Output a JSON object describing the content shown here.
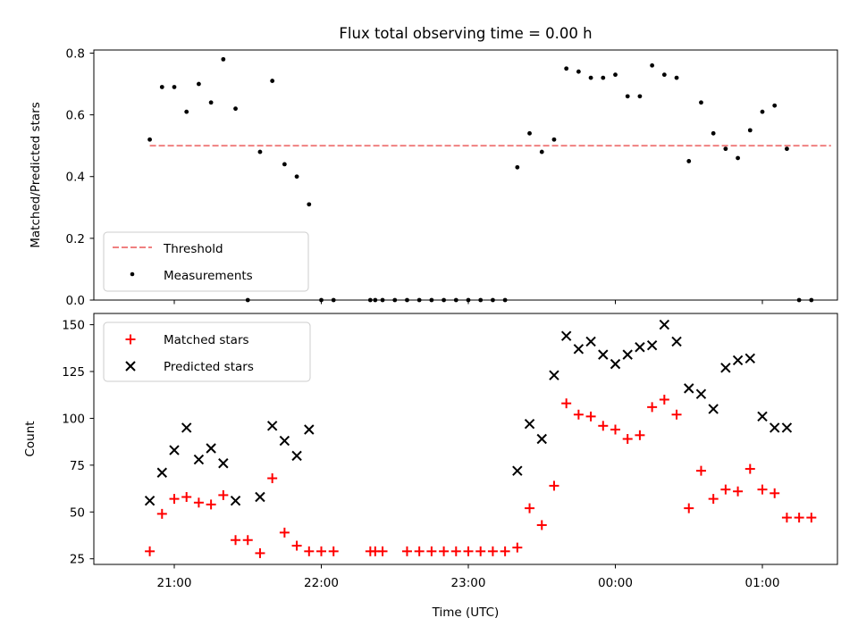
{
  "chart_data": [
    {
      "type": "scatter",
      "title": "Flux total observing time = 0.00 h",
      "xlabel": "",
      "ylabel": "Matched/Predicted stars",
      "ylim": [
        0,
        0.81
      ],
      "yticks": [
        0.0,
        0.2,
        0.4,
        0.6,
        0.8
      ],
      "ytick_labels": [
        "0.0",
        "0.2",
        "0.4",
        "0.6",
        "0.8"
      ],
      "legend": "lower-left",
      "grid": false,
      "threshold": {
        "name": "Threshold",
        "value": 0.5,
        "x_start": "20:50",
        "x_end": "01:28",
        "color": "#f08080"
      },
      "series": [
        {
          "name": "Measurements",
          "color": "#000000",
          "marker": "dot",
          "points": [
            [
              "20:50",
              0.52
            ],
            [
              "20:55",
              0.69
            ],
            [
              "21:00",
              0.69
            ],
            [
              "21:05",
              0.61
            ],
            [
              "21:10",
              0.7
            ],
            [
              "21:15",
              0.64
            ],
            [
              "21:20",
              0.78
            ],
            [
              "21:25",
              0.62
            ],
            [
              "21:30",
              0.0
            ],
            [
              "21:35",
              0.48
            ],
            [
              "21:40",
              0.71
            ],
            [
              "21:45",
              0.44
            ],
            [
              "21:50",
              0.4
            ],
            [
              "21:55",
              0.31
            ],
            [
              "22:00",
              0.0
            ],
            [
              "22:05",
              0.0
            ],
            [
              "22:20",
              0.0
            ],
            [
              "22:22",
              0.0
            ],
            [
              "22:25",
              0.0
            ],
            [
              "22:30",
              0.0
            ],
            [
              "22:35",
              0.0
            ],
            [
              "22:40",
              0.0
            ],
            [
              "22:45",
              0.0
            ],
            [
              "22:50",
              0.0
            ],
            [
              "22:55",
              0.0
            ],
            [
              "23:00",
              0.0
            ],
            [
              "23:05",
              0.0
            ],
            [
              "23:10",
              0.0
            ],
            [
              "23:15",
              0.0
            ],
            [
              "23:20",
              0.43
            ],
            [
              "23:25",
              0.54
            ],
            [
              "23:30",
              0.48
            ],
            [
              "23:35",
              0.52
            ],
            [
              "23:40",
              0.75
            ],
            [
              "23:45",
              0.74
            ],
            [
              "23:50",
              0.72
            ],
            [
              "23:55",
              0.72
            ],
            [
              "00:00",
              0.73
            ],
            [
              "00:05",
              0.66
            ],
            [
              "00:10",
              0.66
            ],
            [
              "00:15",
              0.76
            ],
            [
              "00:20",
              0.73
            ],
            [
              "00:25",
              0.72
            ],
            [
              "00:30",
              0.45
            ],
            [
              "00:35",
              0.64
            ],
            [
              "00:40",
              0.54
            ],
            [
              "00:45",
              0.49
            ],
            [
              "00:50",
              0.46
            ],
            [
              "00:55",
              0.55
            ],
            [
              "01:00",
              0.61
            ],
            [
              "01:05",
              0.63
            ],
            [
              "01:10",
              0.49
            ],
            [
              "01:15",
              0.0
            ],
            [
              "01:20",
              0.0
            ]
          ]
        }
      ]
    },
    {
      "type": "scatter",
      "title": "",
      "xlabel": "Time (UTC)",
      "ylabel": "Count",
      "ylim": [
        22,
        156
      ],
      "yticks": [
        25,
        50,
        75,
        100,
        125,
        150
      ],
      "ytick_labels": [
        "25",
        "50",
        "75",
        "100",
        "125",
        "150"
      ],
      "xticks": [
        "21:00",
        "22:00",
        "23:00",
        "00:00",
        "01:00"
      ],
      "xtick_labels": [
        "21:00",
        "22:00",
        "23:00",
        "00:00",
        "01:00"
      ],
      "legend": "upper-left",
      "grid": false,
      "series": [
        {
          "name": "Matched stars",
          "color": "#ff0000",
          "marker": "plus",
          "points": [
            [
              "20:50",
              29
            ],
            [
              "20:55",
              49
            ],
            [
              "21:00",
              57
            ],
            [
              "21:05",
              58
            ],
            [
              "21:10",
              55
            ],
            [
              "21:15",
              54
            ],
            [
              "21:20",
              59
            ],
            [
              "21:25",
              35
            ],
            [
              "21:30",
              35
            ],
            [
              "21:35",
              28
            ],
            [
              "21:40",
              68
            ],
            [
              "21:45",
              39
            ],
            [
              "21:50",
              32
            ],
            [
              "21:55",
              29
            ],
            [
              "22:00",
              29
            ],
            [
              "22:05",
              29
            ],
            [
              "22:20",
              29
            ],
            [
              "22:22",
              29
            ],
            [
              "22:25",
              29
            ],
            [
              "22:35",
              29
            ],
            [
              "22:40",
              29
            ],
            [
              "22:45",
              29
            ],
            [
              "22:50",
              29
            ],
            [
              "22:55",
              29
            ],
            [
              "23:00",
              29
            ],
            [
              "23:05",
              29
            ],
            [
              "23:10",
              29
            ],
            [
              "23:15",
              29
            ],
            [
              "23:20",
              31
            ],
            [
              "23:25",
              52
            ],
            [
              "23:30",
              43
            ],
            [
              "23:35",
              64
            ],
            [
              "23:40",
              108
            ],
            [
              "23:45",
              102
            ],
            [
              "23:50",
              101
            ],
            [
              "23:55",
              96
            ],
            [
              "00:00",
              94
            ],
            [
              "00:05",
              89
            ],
            [
              "00:10",
              91
            ],
            [
              "00:15",
              106
            ],
            [
              "00:20",
              110
            ],
            [
              "00:25",
              102
            ],
            [
              "00:30",
              52
            ],
            [
              "00:35",
              72
            ],
            [
              "00:40",
              57
            ],
            [
              "00:45",
              62
            ],
            [
              "00:50",
              61
            ],
            [
              "00:55",
              73
            ],
            [
              "01:00",
              62
            ],
            [
              "01:05",
              60
            ],
            [
              "01:10",
              47
            ],
            [
              "01:15",
              47
            ],
            [
              "01:20",
              47
            ]
          ]
        },
        {
          "name": "Predicted stars",
          "color": "#000000",
          "marker": "x",
          "points": [
            [
              "20:50",
              56
            ],
            [
              "20:55",
              71
            ],
            [
              "21:00",
              83
            ],
            [
              "21:05",
              95
            ],
            [
              "21:10",
              78
            ],
            [
              "21:15",
              84
            ],
            [
              "21:20",
              76
            ],
            [
              "21:25",
              56
            ],
            [
              "21:35",
              58
            ],
            [
              "21:40",
              96
            ],
            [
              "21:45",
              88
            ],
            [
              "21:50",
              80
            ],
            [
              "21:55",
              94
            ],
            [
              "23:20",
              72
            ],
            [
              "23:25",
              97
            ],
            [
              "23:30",
              89
            ],
            [
              "23:35",
              123
            ],
            [
              "23:40",
              144
            ],
            [
              "23:45",
              137
            ],
            [
              "23:50",
              141
            ],
            [
              "23:55",
              134
            ],
            [
              "00:00",
              129
            ],
            [
              "00:05",
              134
            ],
            [
              "00:10",
              138
            ],
            [
              "00:15",
              139
            ],
            [
              "00:20",
              150
            ],
            [
              "00:25",
              141
            ],
            [
              "00:30",
              116
            ],
            [
              "00:35",
              113
            ],
            [
              "00:40",
              105
            ],
            [
              "00:45",
              127
            ],
            [
              "00:50",
              131
            ],
            [
              "00:55",
              132
            ],
            [
              "01:00",
              101
            ],
            [
              "01:05",
              95
            ],
            [
              "01:10",
              95
            ]
          ]
        }
      ]
    }
  ]
}
